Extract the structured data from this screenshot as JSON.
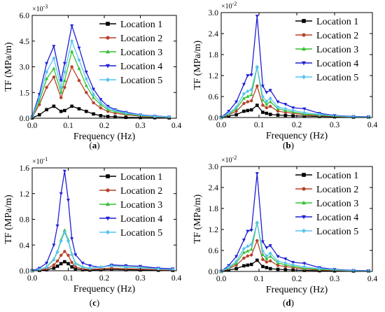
{
  "colors": {
    "Location 1": "#000000",
    "Location 2": "#b7412b",
    "Location 3": "#33c233",
    "Location 4": "#1f1fd6",
    "Location 5": "#59c4f2"
  },
  "chart_data": [
    {
      "type": "line",
      "panel": "(a)",
      "caption_letter": "a",
      "xlabel": "Frequency (Hz)",
      "ylabel": "TF (MPa/m)",
      "xlim": [
        0,
        0.4
      ],
      "ylim": [
        0,
        0.006
      ],
      "y_multiplier": "×10",
      "y_exponent": "-3",
      "x_ticks": [
        "0.0",
        "0.1",
        "0.2",
        "0.3",
        "0.4"
      ],
      "y_ticks": [
        "0.0",
        "1.5",
        "3.0",
        "4.5",
        "6.0"
      ],
      "legend_position": "top-right",
      "grid": false,
      "series": [
        {
          "name": "Location 1",
          "marker": "square",
          "x": [
            0.0,
            0.02,
            0.04,
            0.06,
            0.08,
            0.09,
            0.11,
            0.13,
            0.15,
            0.17,
            0.19,
            0.21,
            0.23,
            0.26,
            0.3,
            0.34,
            0.38
          ],
          "y": [
            2e-05,
            0.0002,
            0.0005,
            0.0007,
            0.0004,
            0.00045,
            0.0007,
            0.00055,
            0.0004,
            0.00025,
            0.00015,
            0.0001,
            8e-05,
            5e-05,
            4e-05,
            3e-05,
            2e-05
          ]
        },
        {
          "name": "Location 2",
          "marker": "circle",
          "x": [
            0.0,
            0.02,
            0.04,
            0.06,
            0.08,
            0.09,
            0.11,
            0.13,
            0.15,
            0.17,
            0.19,
            0.21,
            0.23,
            0.26,
            0.3,
            0.34,
            0.38
          ],
          "y": [
            5e-05,
            0.0008,
            0.0018,
            0.0024,
            0.0012,
            0.0018,
            0.003,
            0.0022,
            0.0015,
            0.0009,
            0.0006,
            0.0004,
            0.0003,
            0.0002,
            0.00012,
            8e-05,
            5e-05
          ]
        },
        {
          "name": "Location 3",
          "marker": "triangle-up",
          "x": [
            0.0,
            0.02,
            0.04,
            0.06,
            0.08,
            0.09,
            0.11,
            0.13,
            0.15,
            0.17,
            0.19,
            0.21,
            0.23,
            0.26,
            0.3,
            0.34,
            0.38
          ],
          "y": [
            6e-05,
            0.001,
            0.0023,
            0.0029,
            0.0015,
            0.0022,
            0.0039,
            0.0029,
            0.0019,
            0.0012,
            0.0008,
            0.0005,
            0.0004,
            0.00025,
            0.00015,
            0.0001,
            6e-05
          ]
        },
        {
          "name": "Location 4",
          "marker": "triangle-down",
          "x": [
            0.0,
            0.02,
            0.04,
            0.06,
            0.08,
            0.09,
            0.11,
            0.13,
            0.15,
            0.17,
            0.19,
            0.21,
            0.23,
            0.26,
            0.3,
            0.34,
            0.38
          ],
          "y": [
            0.0001,
            0.0014,
            0.0032,
            0.0042,
            0.0022,
            0.0032,
            0.0054,
            0.0041,
            0.0027,
            0.0017,
            0.0011,
            0.0007,
            0.0005,
            0.00035,
            0.0002,
            0.00013,
            8e-05
          ]
        },
        {
          "name": "Location 5",
          "marker": "diamond",
          "x": [
            0.0,
            0.02,
            0.04,
            0.06,
            0.08,
            0.09,
            0.11,
            0.13,
            0.15,
            0.17,
            0.19,
            0.21,
            0.23,
            0.26,
            0.3,
            0.34,
            0.38
          ],
          "y": [
            8e-05,
            0.0012,
            0.0027,
            0.0035,
            0.0018,
            0.0027,
            0.0045,
            0.0034,
            0.0023,
            0.0014,
            0.0009,
            0.0006,
            0.00045,
            0.0003,
            0.00018,
            0.00011,
            7e-05
          ]
        }
      ]
    },
    {
      "type": "line",
      "panel": "(b)",
      "caption_letter": "b",
      "xlabel": "Frequency (Hz)",
      "ylabel": "TF (MPa/m)",
      "xlim": [
        0,
        0.4
      ],
      "ylim": [
        0,
        0.03
      ],
      "y_multiplier": "×10",
      "y_exponent": "-2",
      "x_ticks": [
        "0.0",
        "0.1",
        "0.2",
        "0.3",
        "0.4"
      ],
      "y_ticks": [
        "0.0",
        "0.6",
        "1.2",
        "1.8",
        "2.4",
        "3.0"
      ],
      "legend_position": "top-right",
      "grid": false,
      "series": [
        {
          "name": "Location 1",
          "marker": "square",
          "x": [
            0.0,
            0.02,
            0.04,
            0.06,
            0.07,
            0.08,
            0.095,
            0.11,
            0.12,
            0.13,
            0.15,
            0.17,
            0.19,
            0.22,
            0.26,
            0.3,
            0.35,
            0.39
          ],
          "y": [
            0.0,
            0.0005,
            0.0008,
            0.0018,
            0.002,
            0.0022,
            0.0035,
            0.0015,
            0.0012,
            0.0009,
            0.0007,
            0.0006,
            0.0005,
            0.0004,
            0.0003,
            0.0002,
            0.0001,
            0.0001
          ]
        },
        {
          "name": "Location 2",
          "marker": "circle",
          "x": [
            0.0,
            0.02,
            0.04,
            0.06,
            0.07,
            0.08,
            0.095,
            0.11,
            0.12,
            0.13,
            0.15,
            0.17,
            0.19,
            0.22,
            0.26,
            0.3,
            0.35,
            0.39
          ],
          "y": [
            0.0,
            0.0008,
            0.0018,
            0.004,
            0.0045,
            0.0048,
            0.009,
            0.0035,
            0.0028,
            0.0032,
            0.0018,
            0.0015,
            0.0012,
            0.0008,
            0.0005,
            0.0003,
            0.0002,
            0.0001
          ]
        },
        {
          "name": "Location 3",
          "marker": "triangle-up",
          "x": [
            0.0,
            0.02,
            0.04,
            0.06,
            0.07,
            0.08,
            0.095,
            0.11,
            0.12,
            0.13,
            0.15,
            0.17,
            0.19,
            0.22,
            0.26,
            0.3,
            0.35,
            0.39
          ],
          "y": [
            0.0,
            0.001,
            0.0025,
            0.0055,
            0.006,
            0.0065,
            0.0145,
            0.005,
            0.0038,
            0.0045,
            0.0025,
            0.002,
            0.0016,
            0.001,
            0.0007,
            0.0004,
            0.0002,
            0.0001
          ]
        },
        {
          "name": "Location 4",
          "marker": "triangle-down",
          "x": [
            0.0,
            0.02,
            0.04,
            0.06,
            0.07,
            0.08,
            0.095,
            0.11,
            0.12,
            0.13,
            0.15,
            0.17,
            0.19,
            0.22,
            0.26,
            0.3,
            0.35,
            0.39
          ],
          "y": [
            0.0,
            0.0018,
            0.0045,
            0.0095,
            0.012,
            0.0122,
            0.029,
            0.009,
            0.0072,
            0.0078,
            0.0045,
            0.0038,
            0.0028,
            0.0025,
            0.0012,
            0.0006,
            0.0003,
            0.0002
          ]
        },
        {
          "name": "Location 5",
          "marker": "diamond",
          "x": [
            0.0,
            0.02,
            0.04,
            0.06,
            0.07,
            0.08,
            0.095,
            0.11,
            0.12,
            0.13,
            0.15,
            0.17,
            0.19,
            0.22,
            0.26,
            0.3,
            0.35,
            0.39
          ],
          "y": [
            0.0,
            0.0012,
            0.003,
            0.0068,
            0.0075,
            0.008,
            0.0145,
            0.006,
            0.0046,
            0.0055,
            0.003,
            0.0025,
            0.002,
            0.0014,
            0.0009,
            0.0005,
            0.0002,
            0.0001
          ]
        }
      ]
    },
    {
      "type": "line",
      "panel": "(c)",
      "caption_letter": "c",
      "xlabel": "Frequency (Hz)",
      "ylabel": "TF (MPa/m)",
      "xlim": [
        0,
        0.4
      ],
      "ylim": [
        0,
        0.16
      ],
      "y_multiplier": "×10",
      "y_exponent": "-1",
      "x_ticks": [
        "0.0",
        "0.1",
        "0.2",
        "0.3",
        "0.4"
      ],
      "y_ticks": [
        "0.0",
        "0.4",
        "0.8",
        "1.2",
        "1.6"
      ],
      "legend_position": "top-right",
      "grid": false,
      "series": [
        {
          "name": "Location 1",
          "marker": "square",
          "x": [
            0.0,
            0.02,
            0.04,
            0.06,
            0.07,
            0.08,
            0.09,
            0.1,
            0.11,
            0.12,
            0.14,
            0.16,
            0.19,
            0.22,
            0.26,
            0.3,
            0.35,
            0.39
          ],
          "y": [
            0.0,
            0.0005,
            0.0015,
            0.004,
            0.007,
            0.011,
            0.014,
            0.011,
            0.006,
            0.003,
            0.0015,
            0.001,
            0.0015,
            0.002,
            0.0015,
            0.0012,
            0.0008,
            0.0005
          ]
        },
        {
          "name": "Location 2",
          "marker": "circle",
          "x": [
            0.0,
            0.02,
            0.04,
            0.06,
            0.07,
            0.08,
            0.09,
            0.1,
            0.11,
            0.12,
            0.14,
            0.16,
            0.19,
            0.22,
            0.26,
            0.3,
            0.35,
            0.39
          ],
          "y": [
            0.0,
            0.001,
            0.003,
            0.009,
            0.015,
            0.024,
            0.03,
            0.024,
            0.013,
            0.006,
            0.003,
            0.002,
            0.003,
            0.004,
            0.003,
            0.0025,
            0.0015,
            0.001
          ]
        },
        {
          "name": "Location 3",
          "marker": "triangle-up",
          "x": [
            0.0,
            0.02,
            0.04,
            0.06,
            0.07,
            0.08,
            0.09,
            0.1,
            0.11,
            0.12,
            0.14,
            0.16,
            0.19,
            0.22,
            0.26,
            0.3,
            0.35,
            0.39
          ],
          "y": [
            0.0,
            0.002,
            0.006,
            0.018,
            0.03,
            0.048,
            0.063,
            0.048,
            0.026,
            0.012,
            0.006,
            0.004,
            0.006,
            0.008,
            0.006,
            0.005,
            0.003,
            0.002
          ]
        },
        {
          "name": "Location 4",
          "marker": "triangle-down",
          "x": [
            0.0,
            0.02,
            0.04,
            0.06,
            0.07,
            0.08,
            0.09,
            0.1,
            0.11,
            0.12,
            0.14,
            0.16,
            0.19,
            0.22,
            0.26,
            0.3,
            0.35,
            0.39
          ],
          "y": [
            0.0,
            0.004,
            0.012,
            0.04,
            0.07,
            0.12,
            0.155,
            0.11,
            0.05,
            0.025,
            0.012,
            0.008,
            0.005,
            0.009,
            0.008,
            0.007,
            0.004,
            0.003
          ]
        },
        {
          "name": "Location 5",
          "marker": "diamond",
          "x": [
            0.0,
            0.02,
            0.04,
            0.06,
            0.07,
            0.08,
            0.09,
            0.1,
            0.11,
            0.12,
            0.14,
            0.16,
            0.19,
            0.22,
            0.26,
            0.3,
            0.35,
            0.39
          ],
          "y": [
            0.0,
            0.0018,
            0.0055,
            0.017,
            0.029,
            0.046,
            0.06,
            0.046,
            0.025,
            0.011,
            0.0055,
            0.0038,
            0.0055,
            0.0075,
            0.0055,
            0.0045,
            0.0028,
            0.0018
          ]
        }
      ]
    },
    {
      "type": "line",
      "panel": "(d)",
      "caption_letter": "d",
      "xlabel": "Frequency (Hz)",
      "ylabel": "TF (MPa/m)",
      "xlim": [
        0,
        0.4
      ],
      "ylim": [
        0,
        0.03
      ],
      "y_multiplier": "×10",
      "y_exponent": "-2",
      "x_ticks": [
        "0.0",
        "0.1",
        "0.2",
        "0.3",
        "0.4"
      ],
      "y_ticks": [
        "0.0",
        "0.6",
        "1.2",
        "1.8",
        "2.4",
        "3.0"
      ],
      "legend_position": "top-right",
      "grid": false,
      "series": [
        {
          "name": "Location 1",
          "marker": "square",
          "x": [
            0.0,
            0.02,
            0.04,
            0.06,
            0.07,
            0.08,
            0.095,
            0.11,
            0.12,
            0.13,
            0.15,
            0.17,
            0.19,
            0.22,
            0.26,
            0.3,
            0.35,
            0.39
          ],
          "y": [
            0.0,
            0.0004,
            0.0008,
            0.0016,
            0.0018,
            0.002,
            0.0032,
            0.0014,
            0.0011,
            0.0008,
            0.0006,
            0.0005,
            0.0004,
            0.0003,
            0.0002,
            0.00015,
            0.0001,
            0.0001
          ]
        },
        {
          "name": "Location 2",
          "marker": "circle",
          "x": [
            0.0,
            0.02,
            0.04,
            0.06,
            0.07,
            0.08,
            0.095,
            0.11,
            0.12,
            0.13,
            0.15,
            0.17,
            0.19,
            0.22,
            0.26,
            0.3,
            0.35,
            0.39
          ],
          "y": [
            0.0,
            0.0008,
            0.0018,
            0.0038,
            0.0044,
            0.0047,
            0.0088,
            0.0034,
            0.0027,
            0.003,
            0.0017,
            0.0014,
            0.0011,
            0.0007,
            0.0004,
            0.0003,
            0.0002,
            0.0001
          ]
        },
        {
          "name": "Location 3",
          "marker": "triangle-up",
          "x": [
            0.0,
            0.02,
            0.04,
            0.06,
            0.07,
            0.08,
            0.095,
            0.11,
            0.12,
            0.13,
            0.15,
            0.17,
            0.19,
            0.22,
            0.26,
            0.3,
            0.35,
            0.39
          ],
          "y": [
            0.0,
            0.001,
            0.0024,
            0.0054,
            0.0058,
            0.0063,
            0.014,
            0.0048,
            0.0036,
            0.0043,
            0.0024,
            0.0019,
            0.0015,
            0.0009,
            0.0006,
            0.0004,
            0.0002,
            0.0001
          ]
        },
        {
          "name": "Location 4",
          "marker": "triangle-down",
          "x": [
            0.0,
            0.02,
            0.04,
            0.06,
            0.07,
            0.08,
            0.095,
            0.11,
            0.12,
            0.13,
            0.15,
            0.17,
            0.19,
            0.22,
            0.26,
            0.3,
            0.35,
            0.39
          ],
          "y": [
            0.0,
            0.0017,
            0.0043,
            0.009,
            0.0115,
            0.0118,
            0.028,
            0.0085,
            0.0068,
            0.0074,
            0.0043,
            0.0036,
            0.0026,
            0.0023,
            0.0011,
            0.0006,
            0.0003,
            0.0002
          ]
        },
        {
          "name": "Location 5",
          "marker": "diamond",
          "x": [
            0.0,
            0.02,
            0.04,
            0.06,
            0.07,
            0.08,
            0.095,
            0.11,
            0.12,
            0.13,
            0.15,
            0.17,
            0.19,
            0.22,
            0.26,
            0.3,
            0.35,
            0.39
          ],
          "y": [
            0.0,
            0.0012,
            0.0029,
            0.0065,
            0.0072,
            0.0077,
            0.014,
            0.0058,
            0.0044,
            0.0052,
            0.0029,
            0.0024,
            0.0019,
            0.0013,
            0.0008,
            0.0005,
            0.0002,
            0.0001
          ]
        }
      ]
    }
  ]
}
